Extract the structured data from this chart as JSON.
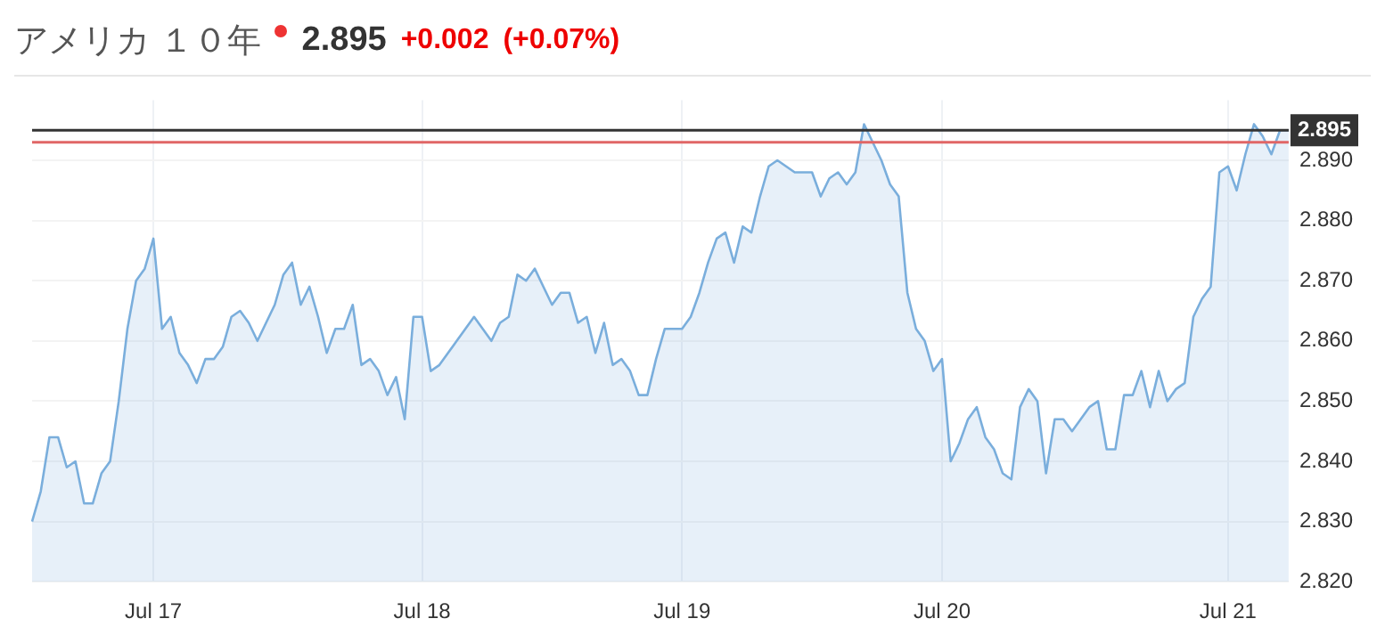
{
  "chart_data": {
    "type": "area",
    "title": "アメリカ １０年",
    "annotations": [
      "2.895",
      "+0.002",
      "(+0.07%)"
    ],
    "categories": [
      null,
      null,
      null,
      null,
      null,
      null,
      null,
      null,
      null,
      null,
      null,
      null,
      null,
      null,
      "Jul 17",
      null,
      null,
      null,
      null,
      null,
      null,
      null,
      null,
      null,
      null,
      null,
      null,
      null,
      null,
      null,
      null,
      null,
      null,
      null,
      null,
      null,
      null,
      null,
      null,
      null,
      null,
      null,
      null,
      null,
      null,
      "Jul 18",
      null,
      null,
      null,
      null,
      null,
      null,
      null,
      null,
      null,
      null,
      null,
      null,
      null,
      null,
      null,
      null,
      null,
      null,
      null,
      null,
      null,
      null,
      null,
      null,
      null,
      null,
      null,
      null,
      null,
      "Jul 19",
      null,
      null,
      null,
      null,
      null,
      null,
      null,
      null,
      null,
      null,
      null,
      null,
      null,
      null,
      null,
      null,
      null,
      null,
      null,
      null,
      null,
      null,
      null,
      null,
      null,
      null,
      null,
      null,
      null,
      "Jul 20",
      null,
      null,
      null,
      null,
      null,
      null,
      null,
      null,
      null,
      null,
      null,
      null,
      null,
      null,
      null,
      null,
      null,
      null,
      null,
      null,
      null,
      null,
      null,
      null,
      null,
      null,
      null,
      null,
      null,
      null,
      null,
      null,
      "Jul 21",
      null,
      null,
      null,
      null,
      null,
      null,
      null
    ],
    "series": [
      {
        "color": "#7aaedc",
        "values": [
          2.83,
          2.835,
          2.844,
          2.844,
          2.839,
          2.84,
          2.833,
          2.833,
          2.838,
          2.84,
          2.85,
          2.862,
          2.87,
          2.872,
          2.877,
          2.862,
          2.864,
          2.858,
          2.856,
          2.853,
          2.857,
          2.857,
          2.859,
          2.864,
          2.865,
          2.863,
          2.86,
          2.863,
          2.866,
          2.871,
          2.873,
          2.866,
          2.869,
          2.864,
          2.858,
          2.862,
          2.862,
          2.866,
          2.856,
          2.857,
          2.855,
          2.851,
          2.854,
          2.847,
          2.864,
          2.864,
          2.855,
          2.856,
          2.858,
          2.86,
          2.862,
          2.864,
          2.862,
          2.86,
          2.863,
          2.864,
          2.871,
          2.87,
          2.872,
          2.869,
          2.866,
          2.868,
          2.868,
          2.863,
          2.864,
          2.858,
          2.863,
          2.856,
          2.857,
          2.855,
          2.851,
          2.851,
          2.857,
          2.862,
          2.862,
          2.862,
          2.864,
          2.868,
          2.873,
          2.877,
          2.878,
          2.873,
          2.879,
          2.878,
          2.884,
          2.889,
          2.89,
          2.889,
          2.888,
          2.888,
          2.888,
          2.884,
          2.887,
          2.888,
          2.886,
          2.888,
          2.896,
          2.893,
          2.89,
          2.886,
          2.884,
          2.868,
          2.862,
          2.86,
          2.855,
          2.857,
          2.84,
          2.843,
          2.847,
          2.849,
          2.844,
          2.842,
          2.838,
          2.837,
          2.849,
          2.852,
          2.85,
          2.838,
          2.847,
          2.847,
          2.845,
          2.847,
          2.849,
          2.85,
          2.842,
          2.842,
          2.851,
          2.851,
          2.855,
          2.849,
          2.855,
          2.85,
          2.852,
          2.853,
          2.864,
          2.867,
          2.869,
          2.888,
          2.889,
          2.885,
          2.891,
          2.896,
          2.894,
          2.891,
          2.895,
          2.895
        ]
      }
    ],
    "ylim": [
      2.82,
      2.9
    ],
    "yticks": [
      {
        "value": 2.82,
        "label": "2.820"
      },
      {
        "value": 2.83,
        "label": "2.830"
      },
      {
        "value": 2.84,
        "label": "2.840"
      },
      {
        "value": 2.85,
        "label": "2.850"
      },
      {
        "value": 2.86,
        "label": "2.860"
      },
      {
        "value": 2.87,
        "label": "2.870"
      },
      {
        "value": 2.88,
        "label": "2.880"
      },
      {
        "value": 2.89,
        "label": "2.890"
      }
    ],
    "ref_lines": [
      {
        "axis": "y",
        "value": 2.895,
        "label": "2.895",
        "color": "#333333"
      },
      {
        "axis": "y",
        "value": 2.893,
        "color": "#e06666"
      }
    ],
    "grid": true
  }
}
